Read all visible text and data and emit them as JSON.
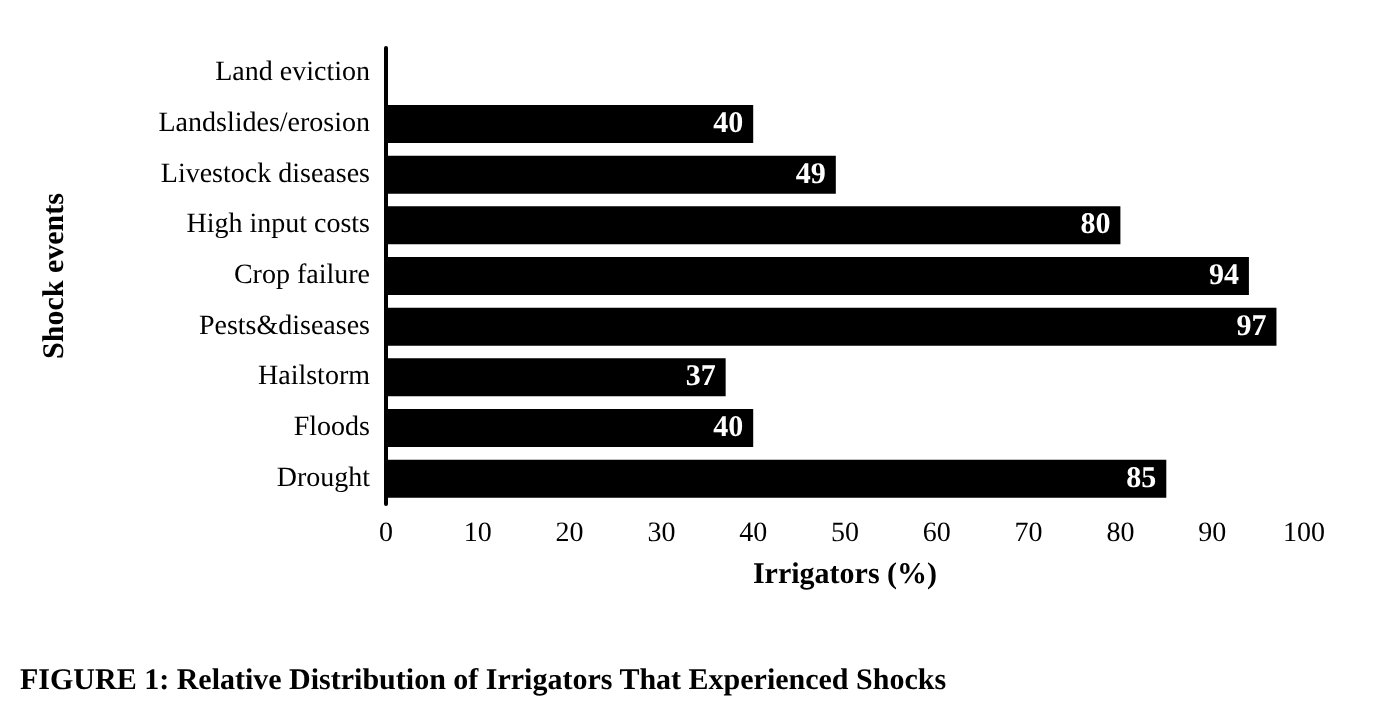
{
  "chart_data": {
    "type": "bar",
    "orientation": "horizontal",
    "xlabel": "Irrigators (%)",
    "ylabel": "Shock events",
    "categories": [
      "Land eviction",
      "Landslides/erosion",
      "Livestock diseases",
      "High input costs",
      "Crop failure",
      "Pests&diseases",
      "Hailstorm",
      "Floods",
      "Drought"
    ],
    "values": [
      0,
      40,
      49,
      80,
      94,
      97,
      37,
      40,
      85
    ],
    "value_labels": [
      null,
      "40",
      "49",
      "80",
      "94",
      "97",
      "37",
      "40",
      "85"
    ],
    "color": "#000000",
    "xlim": [
      0,
      100
    ],
    "xticks": [
      0,
      10,
      20,
      30,
      40,
      50,
      60,
      70,
      80,
      90,
      100
    ],
    "grid": false,
    "annotations": [
      "FIGURE 1: Relative Distribution of Irrigators That Experienced Shocks"
    ]
  }
}
